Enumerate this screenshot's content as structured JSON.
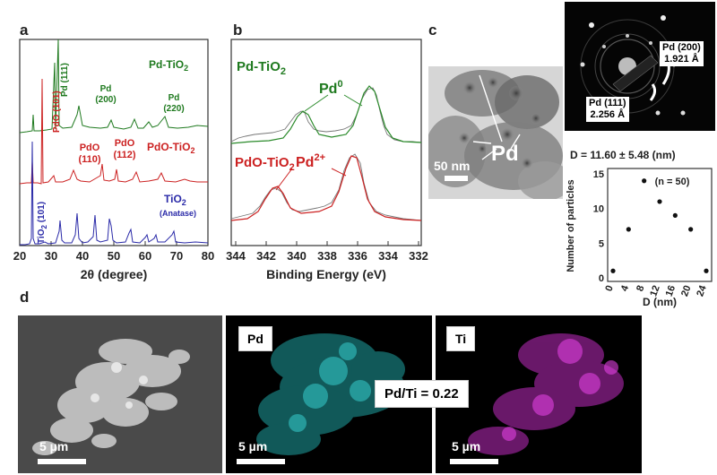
{
  "panels": {
    "a": "a",
    "b": "b",
    "c": "c",
    "d": "d"
  },
  "xrd": {
    "xlabel": "2θ (degree)",
    "xticks": [
      "20",
      "30",
      "40",
      "50",
      "60",
      "70",
      "80"
    ],
    "series": [
      {
        "name_main": "Pd-TiO",
        "name_sub": "2",
        "color": "#1f7a1f"
      },
      {
        "name_main": "PdO-TiO",
        "name_sub": "2",
        "color": "#cc2222"
      },
      {
        "name_main": "TiO",
        "name_sub": "2",
        "color": "#2a2aa8",
        "note": "(Anatase)"
      }
    ],
    "peaks": {
      "pd111": "Pd (111)",
      "pd200a": "Pd",
      "pd200b": "(200)",
      "pd220a": "Pd",
      "pd220b": "(220)",
      "pdo101": "PdO (101)",
      "pdo110a": "PdO",
      "pdo110b": "(110)",
      "pdo112a": "PdO",
      "pdo112b": "(112)",
      "tio2_101_main": "TiO",
      "tio2_101_sub": "2",
      "tio2_101_rest": " (101)"
    }
  },
  "xps": {
    "xlabel": "Binding Energy (eV)",
    "xticks": [
      "344",
      "342",
      "340",
      "338",
      "336",
      "334",
      "332"
    ],
    "top_label_main": "Pd-TiO",
    "top_label_sub": "2",
    "top_peak_main": "Pd",
    "top_peak_sup": "0",
    "bottom_label_main": "PdO-TiO",
    "bottom_label_sub": "2",
    "bottom_peak_main": "Pd",
    "bottom_peak_sup": "2+"
  },
  "tem": {
    "scale": "50 nm",
    "label": "Pd"
  },
  "saed": {
    "pd200": "Pd (200)",
    "pd200_d": "1.921 Å",
    "pd111": "Pd (111)",
    "pd111_d": "2.256 Å"
  },
  "histogram": {
    "title": "D = 11.60 ± 5.48 (nm)",
    "n_label": "(n = 50)",
    "xlabel": "D (nm)",
    "ylabel": "Number of particles",
    "xticks": [
      "0",
      "4",
      "8",
      "12",
      "16",
      "20",
      "24"
    ],
    "yticks": [
      "0",
      "5",
      "10",
      "15"
    ],
    "chart_data": {
      "type": "scatter",
      "x": [
        0,
        4,
        8,
        12,
        16,
        20,
        24
      ],
      "y": [
        1,
        7,
        14,
        11,
        9,
        7,
        1
      ],
      "xlim": [
        0,
        24
      ],
      "ylim": [
        0,
        15
      ]
    }
  },
  "eds": {
    "sem_scale": "5 µm",
    "pd_label": "Pd",
    "pd_scale": "5 µm",
    "ratio": "Pd/Ti = 0.22",
    "ti_label": "Ti",
    "ti_scale": "5 µm"
  }
}
